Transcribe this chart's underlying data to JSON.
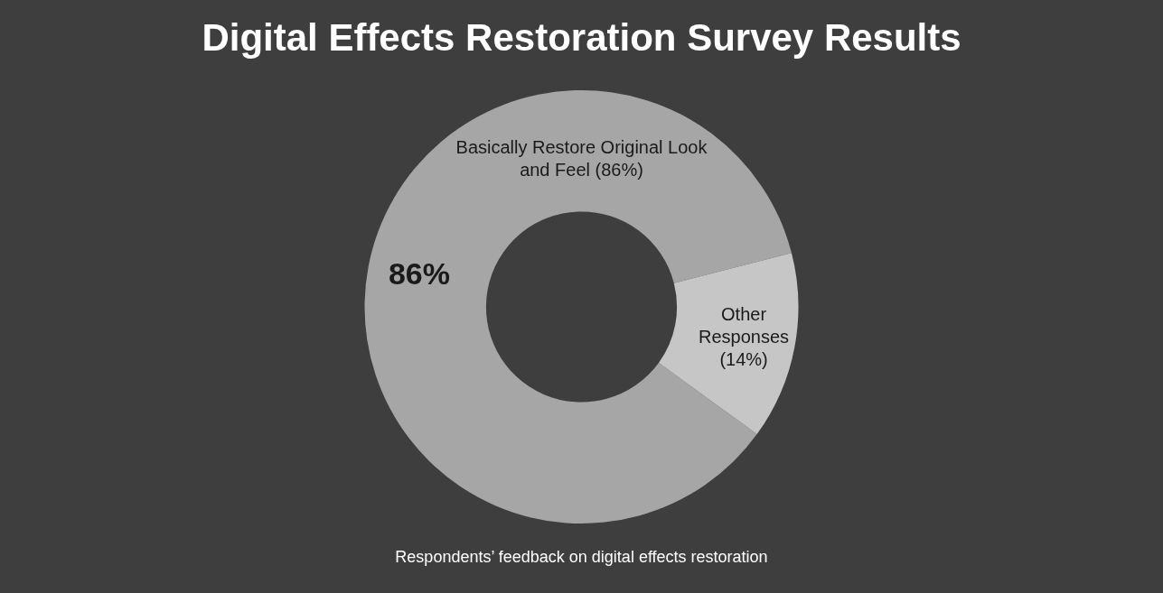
{
  "chart_data": {
    "type": "donut",
    "title": "Digital Effects Restoration Survey Results",
    "categories": [
      "Basically Restore Original Look and Feel (86%)",
      "Other Responses (14%)"
    ],
    "values": [
      86,
      14
    ],
    "colors": [
      "#a6a6a6",
      "#c6c6c6"
    ],
    "value_labels": [
      "86%",
      null
    ],
    "annotations": [
      "Respondents’ feedback on digital effects restoration"
    ],
    "legend": false
  }
}
